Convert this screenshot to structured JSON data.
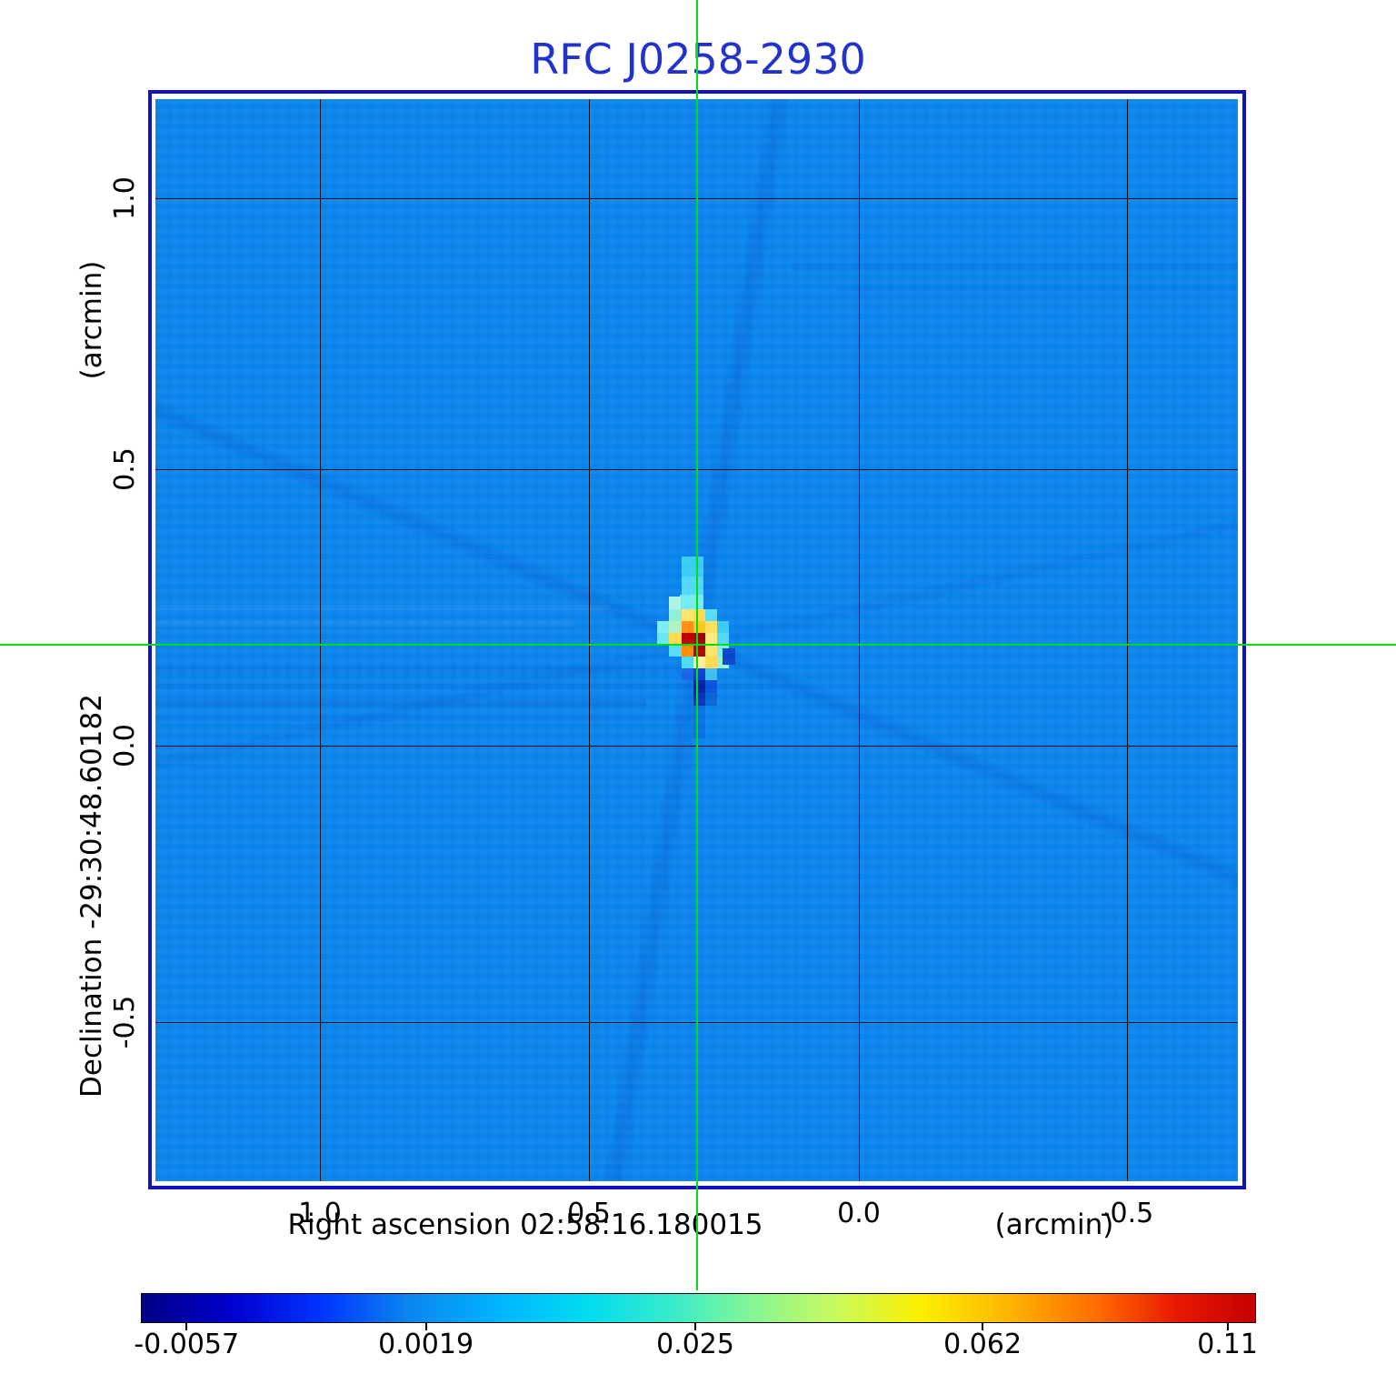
{
  "title": {
    "text": "RFC J0258-2930",
    "color": "#2233cc"
  },
  "axes": {
    "y": {
      "label": "Declination  -29:30:48.60182",
      "unit": "(arcmin)",
      "tick_labels": [
        "1.0",
        "0.5",
        "0.0",
        "-0.5"
      ]
    },
    "x": {
      "label": "Right ascension  02:58:16.180015",
      "unit": "(arcmin)",
      "tick_labels": [
        "1.0",
        "0.5",
        "0.0",
        "-0.5"
      ]
    }
  },
  "colorbar": {
    "tick_labels": [
      "-0.0057",
      "0.0019",
      "0.025",
      "0.062",
      "0.11"
    ],
    "tick_positions_pct": [
      4.1,
      25.6,
      49.8,
      75.6,
      97.6
    ],
    "gradient_stops": [
      {
        "pct": 0,
        "color": "#000086"
      },
      {
        "pct": 8,
        "color": "#0000cd"
      },
      {
        "pct": 16,
        "color": "#0033ff"
      },
      {
        "pct": 24,
        "color": "#0b86ee"
      },
      {
        "pct": 32,
        "color": "#00b4ff"
      },
      {
        "pct": 40,
        "color": "#00dcf0"
      },
      {
        "pct": 48,
        "color": "#3cecc8"
      },
      {
        "pct": 54,
        "color": "#7df59b"
      },
      {
        "pct": 62,
        "color": "#c6fa60"
      },
      {
        "pct": 70,
        "color": "#fdf000"
      },
      {
        "pct": 78,
        "color": "#ffb400"
      },
      {
        "pct": 86,
        "color": "#ff6a00"
      },
      {
        "pct": 93,
        "color": "#e81800"
      },
      {
        "pct": 100,
        "color": "#c40000"
      }
    ]
  },
  "crosshair": {
    "color": "#00dd11",
    "marks_source_at": {
      "ra": "02:58:16.180015",
      "dec": "-29:30:48.60182"
    }
  },
  "chart_data": {
    "type": "heatmap",
    "title": "RFC J0258-2930",
    "xlabel": "Right ascension  02:58:16.180015",
    "xunit": "(arcmin)",
    "ylabel": "Declination  -29:30:48.60182",
    "yunit": "(arcmin)",
    "x_tick_values": [
      1.0,
      0.5,
      0.0,
      -0.5
    ],
    "y_tick_values": [
      1.0,
      0.5,
      0.0,
      -0.5
    ],
    "x_range_arcmin": [
      1.31,
      -0.71
    ],
    "y_range_arcmin": [
      1.18,
      -0.79
    ],
    "grid": true,
    "background_level_color": "#0b86ee",
    "colorbar_ticks_jy": [
      -0.0057,
      0.0019,
      0.025,
      0.062,
      0.11
    ],
    "peak_crosshair_offset_arcmin": {
      "x": 0.3,
      "y": 0.19
    },
    "source_pixels": {
      "note": "compact source pixel blocks, absolute page px",
      "rects": [
        [
          750,
          612,
          24,
          22,
          "#38cdf5"
        ],
        [
          750,
          634,
          24,
          20,
          "#4fd9f7"
        ],
        [
          748,
          654,
          26,
          17,
          "#74ebf3"
        ],
        [
          736,
          656,
          13,
          14,
          "#aef4e4"
        ],
        [
          736,
          670,
          14,
          13,
          "#8ef0d8"
        ],
        [
          750,
          670,
          13,
          13,
          "#ffe36b"
        ],
        [
          763,
          670,
          13,
          13,
          "#ffd94e"
        ],
        [
          776,
          670,
          13,
          13,
          "#56dcf6"
        ],
        [
          723,
          683,
          13,
          13,
          "#7deef0"
        ],
        [
          736,
          683,
          14,
          13,
          "#aff3c3"
        ],
        [
          750,
          683,
          13,
          13,
          "#ff9013"
        ],
        [
          763,
          683,
          13,
          13,
          "#ffc61b"
        ],
        [
          776,
          683,
          13,
          13,
          "#ffe05c"
        ],
        [
          789,
          683,
          13,
          13,
          "#39cdf4"
        ],
        [
          723,
          696,
          13,
          13,
          "#66e8ee"
        ],
        [
          736,
          696,
          14,
          13,
          "#ffd94e"
        ],
        [
          750,
          696,
          13,
          13,
          "#c00000"
        ],
        [
          763,
          696,
          13,
          13,
          "#a50000"
        ],
        [
          776,
          696,
          13,
          13,
          "#ffe87d"
        ],
        [
          789,
          696,
          13,
          13,
          "#4fd9f7"
        ],
        [
          736,
          709,
          14,
          13,
          "#56dcf6"
        ],
        [
          750,
          709,
          13,
          13,
          "#ff8c00"
        ],
        [
          763,
          709,
          13,
          13,
          "#b00000"
        ],
        [
          776,
          709,
          13,
          13,
          "#ffe36b"
        ],
        [
          789,
          709,
          13,
          13,
          "#7deef0"
        ],
        [
          750,
          722,
          13,
          13,
          "#4fd9f7"
        ],
        [
          763,
          722,
          13,
          13,
          "#ffee9a"
        ],
        [
          776,
          722,
          13,
          13,
          "#ffd94e"
        ],
        [
          789,
          722,
          13,
          13,
          "#9bf2d0"
        ],
        [
          750,
          735,
          13,
          13,
          "#1565e8"
        ],
        [
          763,
          735,
          13,
          13,
          "#0b3fd0"
        ],
        [
          776,
          735,
          13,
          13,
          "#3fbef2"
        ],
        [
          763,
          748,
          13,
          14,
          "#02209f"
        ],
        [
          776,
          748,
          13,
          14,
          "#0a53dd"
        ],
        [
          763,
          762,
          13,
          14,
          "#0634b8"
        ],
        [
          776,
          762,
          13,
          14,
          "#0766d8"
        ],
        [
          795,
          713,
          14,
          18,
          "#0846cc"
        ],
        [
          763,
          776,
          13,
          36,
          "#0a71e2"
        ]
      ]
    }
  }
}
